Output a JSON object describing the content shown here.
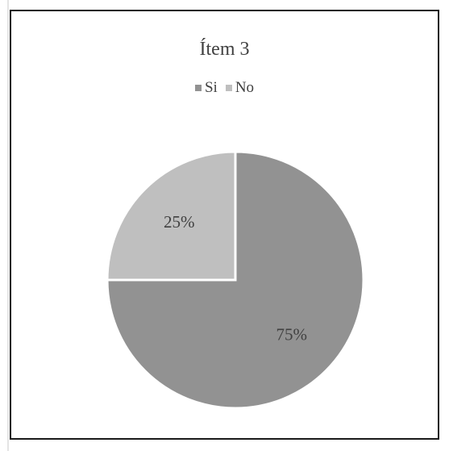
{
  "chart_data": {
    "type": "pie",
    "title": "Ítem 3",
    "categories": [
      "Si",
      "No"
    ],
    "values": [
      75,
      25
    ],
    "labels": [
      "75%",
      "25%"
    ],
    "colors": [
      "#929292",
      "#bfbfbf"
    ],
    "legend_position": "top",
    "start_angle_deg": 0,
    "direction": "clockwise"
  }
}
